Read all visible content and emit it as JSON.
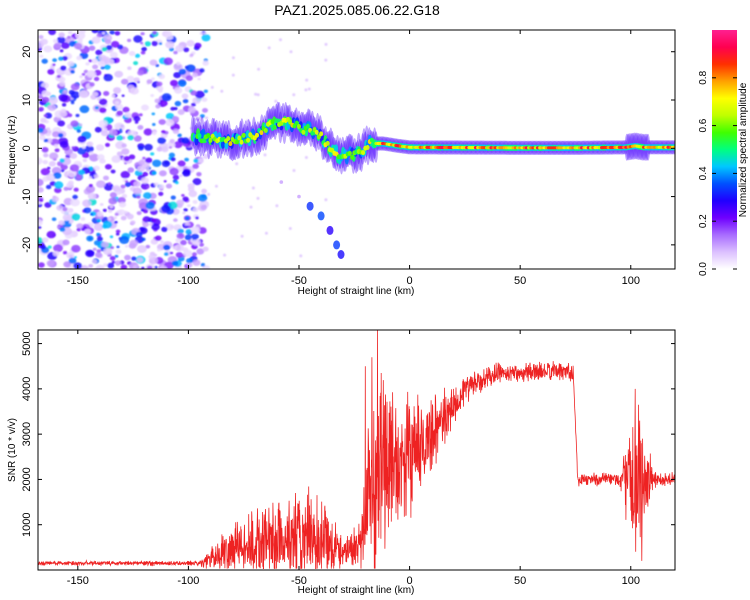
{
  "title": "PAZ1.2025.085.06.22.G18",
  "chart_data": [
    {
      "type": "heatmap",
      "xlabel": "Height of straight line (km)",
      "ylabel": "Frequency (Hz)",
      "xlim": [
        -168,
        120
      ],
      "ylim": [
        -25,
        24.5
      ],
      "xticks": [
        -150,
        -100,
        -50,
        0,
        50,
        100
      ],
      "yticks": [
        -20,
        -10,
        0,
        10,
        20
      ],
      "colorbar": {
        "label": "Normalized spectral amplitude",
        "range": [
          0,
          1
        ],
        "ticks": [
          0.0,
          0.2,
          0.4,
          0.6,
          0.8
        ],
        "colors": [
          "#ffffff",
          "#dcc0ff",
          "#a86cff",
          "#6f00ff",
          "#2000ff",
          "#0050ff",
          "#00c8ff",
          "#00ff80",
          "#40ff00",
          "#c0ff00",
          "#ffff00",
          "#ffa000",
          "#ff3000",
          "#ff0050",
          "#ff2090"
        ]
      },
      "ridge": [
        [
          -98,
          2.5
        ],
        [
          -90,
          2.0
        ],
        [
          -80,
          1.5
        ],
        [
          -70,
          2.5
        ],
        [
          -62,
          5.0
        ],
        [
          -55,
          5.5
        ],
        [
          -48,
          4.0
        ],
        [
          -42,
          3.5
        ],
        [
          -38,
          1.0
        ],
        [
          -32,
          -1.5
        ],
        [
          -28,
          -1.5
        ],
        [
          -22,
          -1.0
        ],
        [
          -18,
          1.0
        ],
        [
          -12,
          1.0
        ],
        [
          -5,
          0.5
        ],
        [
          0,
          0.2
        ],
        [
          50,
          0.1
        ],
        [
          75,
          0.1
        ],
        [
          98,
          0.2
        ],
        [
          102,
          0.5
        ],
        [
          106,
          0.2
        ],
        [
          120,
          0.2
        ]
      ],
      "secondary_branch": [
        [
          -58,
          -7
        ],
        [
          -50,
          -10
        ],
        [
          -45,
          -12
        ],
        [
          -40,
          -14
        ],
        [
          -36,
          -17
        ],
        [
          -33,
          -20
        ],
        [
          -31,
          -22
        ]
      ]
    },
    {
      "type": "line",
      "xlabel": "Height of straight line (km)",
      "ylabel": "SNR (10 * v/v)",
      "xlim": [
        -168,
        120
      ],
      "ylim": [
        0,
        5300
      ],
      "xticks": [
        -150,
        -100,
        -50,
        0,
        50,
        100
      ],
      "yticks": [
        1000,
        2000,
        3000,
        4000,
        5000
      ],
      "line_color": "#ee2222",
      "envelope": [
        {
          "x": -168,
          "mean": 150,
          "amp": 60
        },
        {
          "x": -95,
          "mean": 150,
          "amp": 60
        },
        {
          "x": -88,
          "mean": 300,
          "amp": 400
        },
        {
          "x": -80,
          "mean": 500,
          "amp": 700
        },
        {
          "x": -70,
          "mean": 550,
          "amp": 900
        },
        {
          "x": -55,
          "mean": 700,
          "amp": 1200
        },
        {
          "x": -40,
          "mean": 700,
          "amp": 1300
        },
        {
          "x": -30,
          "mean": 400,
          "amp": 400
        },
        {
          "x": -22,
          "mean": 600,
          "amp": 700
        },
        {
          "x": -18,
          "mean": 1800,
          "amp": 2400
        },
        {
          "x": -12,
          "mean": 2500,
          "amp": 2600
        },
        {
          "x": -5,
          "mean": 2300,
          "amp": 1800
        },
        {
          "x": 5,
          "mean": 2700,
          "amp": 1200
        },
        {
          "x": 15,
          "mean": 3300,
          "amp": 800
        },
        {
          "x": 25,
          "mean": 4000,
          "amp": 400
        },
        {
          "x": 40,
          "mean": 4350,
          "amp": 250
        },
        {
          "x": 74,
          "mean": 4400,
          "amp": 250
        },
        {
          "x": 76,
          "mean": 2000,
          "amp": 180
        },
        {
          "x": 95,
          "mean": 2000,
          "amp": 200
        },
        {
          "x": 100,
          "mean": 2000,
          "amp": 1500
        },
        {
          "x": 106,
          "mean": 1900,
          "amp": 1900
        },
        {
          "x": 110,
          "mean": 2000,
          "amp": 250
        },
        {
          "x": 120,
          "mean": 2000,
          "amp": 180
        }
      ],
      "spikes": [
        {
          "x": -14.5,
          "y": 5300
        },
        {
          "x": -17,
          "y": 4700
        },
        {
          "x": -20,
          "y": 4500
        },
        {
          "x": 102,
          "y": 4000
        },
        {
          "x": 104,
          "y": 3300
        },
        {
          "x": 105,
          "y": 200
        }
      ]
    }
  ]
}
